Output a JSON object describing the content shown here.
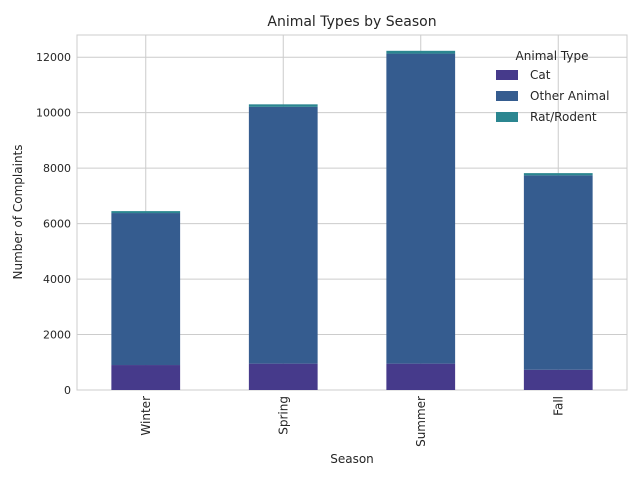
{
  "chart_data": {
    "type": "bar",
    "stacked": true,
    "title": "Animal Types by Season",
    "xlabel": "Season",
    "ylabel": "Number of Complaints",
    "categories": [
      "Winter",
      "Spring",
      "Summer",
      "Fall"
    ],
    "series": [
      {
        "name": "Cat",
        "color": "#463a8b",
        "values": [
          900,
          950,
          950,
          730
        ]
      },
      {
        "name": "Other Animal",
        "color": "#355c8f",
        "values": [
          5480,
          9260,
          11180,
          7010
        ]
      },
      {
        "name": "Rat/Rodent",
        "color": "#2b8690",
        "values": [
          70,
          90,
          100,
          80
        ]
      }
    ],
    "ylim": [
      0,
      12800
    ],
    "yticks": [
      "0",
      "2000",
      "4000",
      "6000",
      "8000",
      "10000",
      "12000"
    ],
    "legend": {
      "title": "Animal Type",
      "placement": "top-right"
    },
    "grid": true
  }
}
